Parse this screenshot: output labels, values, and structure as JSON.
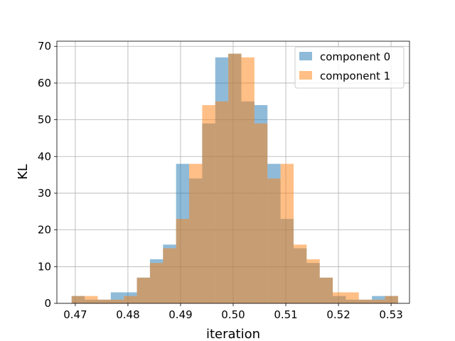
{
  "chart_data": {
    "type": "histogram",
    "title": "",
    "xlabel": "iteration",
    "ylabel": "KL",
    "xlim": [
      0.4665,
      0.5335
    ],
    "ylim": [
      0,
      71.4
    ],
    "xticks": [
      0.47,
      0.48,
      0.49,
      0.5,
      0.51,
      0.52,
      0.53
    ],
    "xtick_labels": [
      "0.47",
      "0.48",
      "0.49",
      "0.50",
      "0.51",
      "0.52",
      "0.53"
    ],
    "yticks": [
      0,
      10,
      20,
      30,
      40,
      50,
      60,
      70
    ],
    "ytick_labels": [
      "0",
      "10",
      "20",
      "30",
      "40",
      "50",
      "60",
      "70"
    ],
    "grid": true,
    "legend_position": "top-right",
    "series": [
      {
        "name": "component 0",
        "color": "#1f77b4",
        "alpha": 0.5,
        "bin_start": 0.4693,
        "bin_width": 0.002481,
        "counts": [
          2,
          1,
          1,
          3,
          3,
          7,
          12,
          16,
          38,
          34,
          49,
          67,
          68,
          55,
          54,
          38,
          23,
          15,
          11,
          7,
          2,
          1,
          1,
          2,
          2
        ]
      },
      {
        "name": "component 1",
        "color": "#ff7f0e",
        "alpha": 0.5,
        "bin_start": 0.4693,
        "bin_width": 0.002481,
        "counts": [
          2,
          2,
          1,
          1,
          2,
          7,
          11,
          15,
          23,
          38,
          54,
          55,
          68,
          67,
          49,
          34,
          38,
          16,
          12,
          7,
          3,
          3,
          1,
          1,
          2
        ]
      }
    ]
  }
}
